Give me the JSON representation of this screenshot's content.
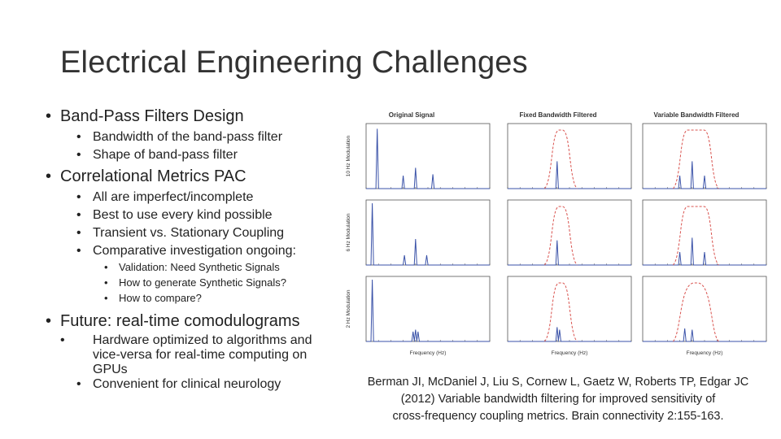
{
  "slide": {
    "title": "Electrical Engineering Challenges"
  },
  "bullets": [
    {
      "text": "Band-Pass Filters Design",
      "sub": [
        "Bandwidth of the band-pass filter",
        "Shape of band-pass filter"
      ]
    },
    {
      "text": "Correlational Metrics PAC",
      "sub": [
        "All are imperfect/incomplete",
        "Best to use every kind possible",
        "Transient vs. Stationary Coupling",
        "Comparative investigation ongoing:"
      ],
      "subsub": [
        "Validation: Need Synthetic Signals",
        "How to generate Synthetic Signals?",
        "How to compare?"
      ]
    },
    {
      "text": "Future: real-time comodulograms",
      "sub": [
        "Hardware optimized to algorithms and vice-versa for real-time computing on GPUs",
        "Convenient for clinical neurology"
      ]
    }
  ],
  "figure": {
    "column_titles": [
      "Original Signal",
      "Fixed Bandwidth Filtered",
      "Variable Bandwidth Filtered"
    ],
    "row_labels": [
      "10 Hz Modulation",
      "6 Hz Modulation",
      "2 Hz Modulation"
    ],
    "xlabel": "Frequency (Hz)",
    "colors": {
      "spectrum": "#3a52a8",
      "filter": "#d9534f",
      "frame": "#555555"
    }
  },
  "citation": {
    "line1": "Berman JI, McDaniel J, Liu S, Cornew L, Gaetz W, Roberts TP, Edgar JC",
    "line2": "(2012) Variable bandwidth filtering for improved sensitivity of",
    "line3": "cross-frequency coupling metrics. Brain connectivity 2:155-163."
  }
}
